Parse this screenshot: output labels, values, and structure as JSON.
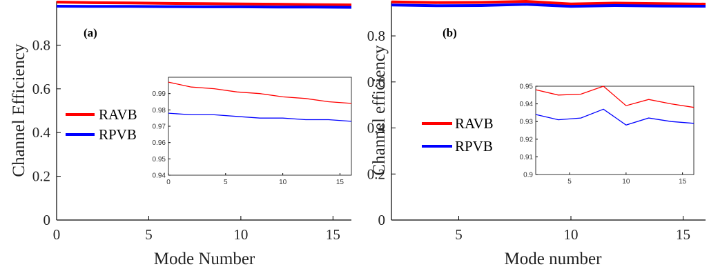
{
  "chart_data": [
    {
      "type": "line",
      "panel_label": "(a)",
      "xlabel": "Mode Number",
      "ylabel": "Channel Efficiency",
      "xlim": [
        0,
        16
      ],
      "ylim": [
        0,
        1
      ],
      "xticks": [
        0,
        5,
        10,
        15
      ],
      "yticks": [
        0,
        0.2,
        0.4,
        0.6,
        0.8
      ],
      "xtick_labels": [
        "0",
        "5",
        "10",
        "15"
      ],
      "ytick_labels": [
        "0",
        "0.2",
        "0.4",
        "0.6",
        "0.8"
      ],
      "legend_placement": "center-left",
      "series": [
        {
          "name": "RAVB",
          "color": "#ff0000",
          "x": [
            0,
            2,
            4,
            6,
            8,
            10,
            12,
            14,
            16
          ],
          "y": [
            0.997,
            0.994,
            0.993,
            0.991,
            0.99,
            0.988,
            0.987,
            0.985,
            0.984
          ]
        },
        {
          "name": "RPVB",
          "color": "#0000ff",
          "x": [
            0,
            2,
            4,
            6,
            8,
            10,
            12,
            14,
            16
          ],
          "y": [
            0.978,
            0.977,
            0.977,
            0.976,
            0.975,
            0.975,
            0.974,
            0.974,
            0.973
          ]
        }
      ],
      "inset": {
        "xlim": [
          0,
          16
        ],
        "ylim": [
          0.94,
          1.0
        ],
        "xticks": [
          0,
          5,
          10,
          15
        ],
        "yticks": [
          0.94,
          0.95,
          0.96,
          0.97,
          0.98,
          0.99
        ],
        "xtick_labels": [
          "0",
          "5",
          "10",
          "15"
        ],
        "ytick_labels": [
          "0.94",
          "0.95",
          "0.96",
          "0.97",
          "0.98",
          "0.99"
        ]
      }
    },
    {
      "type": "line",
      "panel_label": "(b)",
      "xlabel": "Mode number",
      "ylabel": "Channel efficiency",
      "xlim": [
        2,
        16
      ],
      "ylim": [
        0,
        0.95
      ],
      "xticks": [
        5,
        10,
        15
      ],
      "yticks": [
        0,
        0.2,
        0.4,
        0.6,
        0.8
      ],
      "xtick_labels": [
        "5",
        "10",
        "15"
      ],
      "ytick_labels": [
        "0",
        "0.2",
        "0.4",
        "0.6",
        "0.8"
      ],
      "legend_placement": "center-left",
      "series": [
        {
          "name": "RAVB",
          "color": "#ff0000",
          "x": [
            2,
            4,
            6,
            8,
            10,
            12,
            14,
            16
          ],
          "y": [
            0.948,
            0.945,
            0.9455,
            0.95,
            0.939,
            0.9425,
            0.94,
            0.938
          ]
        },
        {
          "name": "RPVB",
          "color": "#0000ff",
          "x": [
            2,
            4,
            6,
            8,
            10,
            12,
            14,
            16
          ],
          "y": [
            0.934,
            0.931,
            0.932,
            0.937,
            0.928,
            0.932,
            0.93,
            0.929
          ]
        }
      ],
      "inset": {
        "xlim": [
          2,
          16
        ],
        "ylim": [
          0.9,
          0.95
        ],
        "xticks": [
          5,
          10,
          15
        ],
        "yticks": [
          0.9,
          0.91,
          0.92,
          0.93,
          0.94,
          0.95
        ],
        "xtick_labels": [
          "5",
          "10",
          "15"
        ],
        "ytick_labels": [
          "0.9",
          "0.91",
          "0.92",
          "0.93",
          "0.94",
          "0.95"
        ]
      }
    }
  ]
}
